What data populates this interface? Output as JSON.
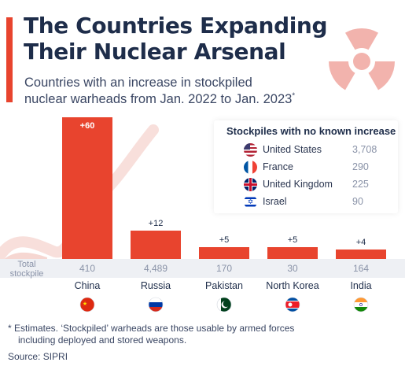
{
  "header": {
    "title_line1": "The Countries Expanding",
    "title_line2": "Their Nuclear Arsenal",
    "subtitle_line1": "Countries with an increase in stockpiled",
    "subtitle_line2": "nuclear warheads from Jan. 2022 to Jan. 2023",
    "subtitle_marker": "*",
    "icon": "radiation-icon"
  },
  "colors": {
    "bar": "#e8442e",
    "accent": "#e8442e",
    "title": "#1e2d4a",
    "muted": "#8a93a8",
    "icon": "#f2b3ad",
    "band": "#eef0f4"
  },
  "chart_data": {
    "type": "bar",
    "categories": [
      "China",
      "Russia",
      "Pakistan",
      "North Korea",
      "India"
    ],
    "values": [
      60,
      12,
      5,
      5,
      4
    ],
    "value_labels": [
      "+60",
      "+12",
      "+5",
      "+5",
      "+4"
    ],
    "total_stockpile_label": "Total stockpile",
    "total_stockpile": [
      "410",
      "4,489",
      "170",
      "30",
      "164"
    ],
    "flags": [
      "china-flag-icon",
      "russia-flag-icon",
      "pakistan-flag-icon",
      "north-korea-flag-icon",
      "india-flag-icon"
    ],
    "ylim": [
      0,
      60
    ]
  },
  "legend": {
    "title": "Stockpiles with no known increase",
    "rows": [
      {
        "country": "United States",
        "value": "3,708",
        "icon": "usa-flag-icon"
      },
      {
        "country": "France",
        "value": "290",
        "icon": "france-flag-icon"
      },
      {
        "country": "United Kingdom",
        "value": "225",
        "icon": "uk-flag-icon"
      },
      {
        "country": "Israel",
        "value": "90",
        "icon": "israel-flag-icon"
      }
    ]
  },
  "footnote": {
    "line1": "* Estimates. ‘Stockpiled’ warheads are those usable by armed forces",
    "line2": "including deployed and stored weapons.",
    "source": "Source: SIPRI"
  }
}
